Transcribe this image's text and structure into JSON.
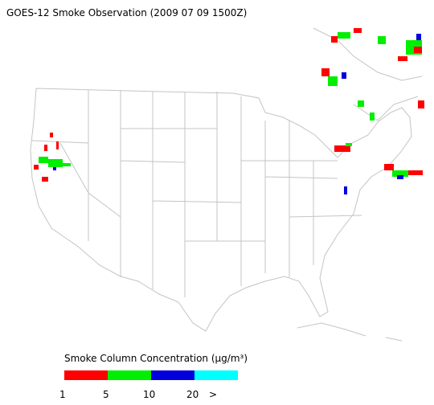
{
  "header": {
    "title": "GOES-12 Smoke Observation (2009 07 09  1500Z)"
  },
  "legend": {
    "title": "Smoke Column Concentration (μg/m³)",
    "colors": [
      "#ff0000",
      "#00ee00",
      "#0000dd",
      "#00ffff"
    ],
    "tick_labels": [
      "1",
      "5",
      "10",
      "20",
      ">"
    ]
  }
}
